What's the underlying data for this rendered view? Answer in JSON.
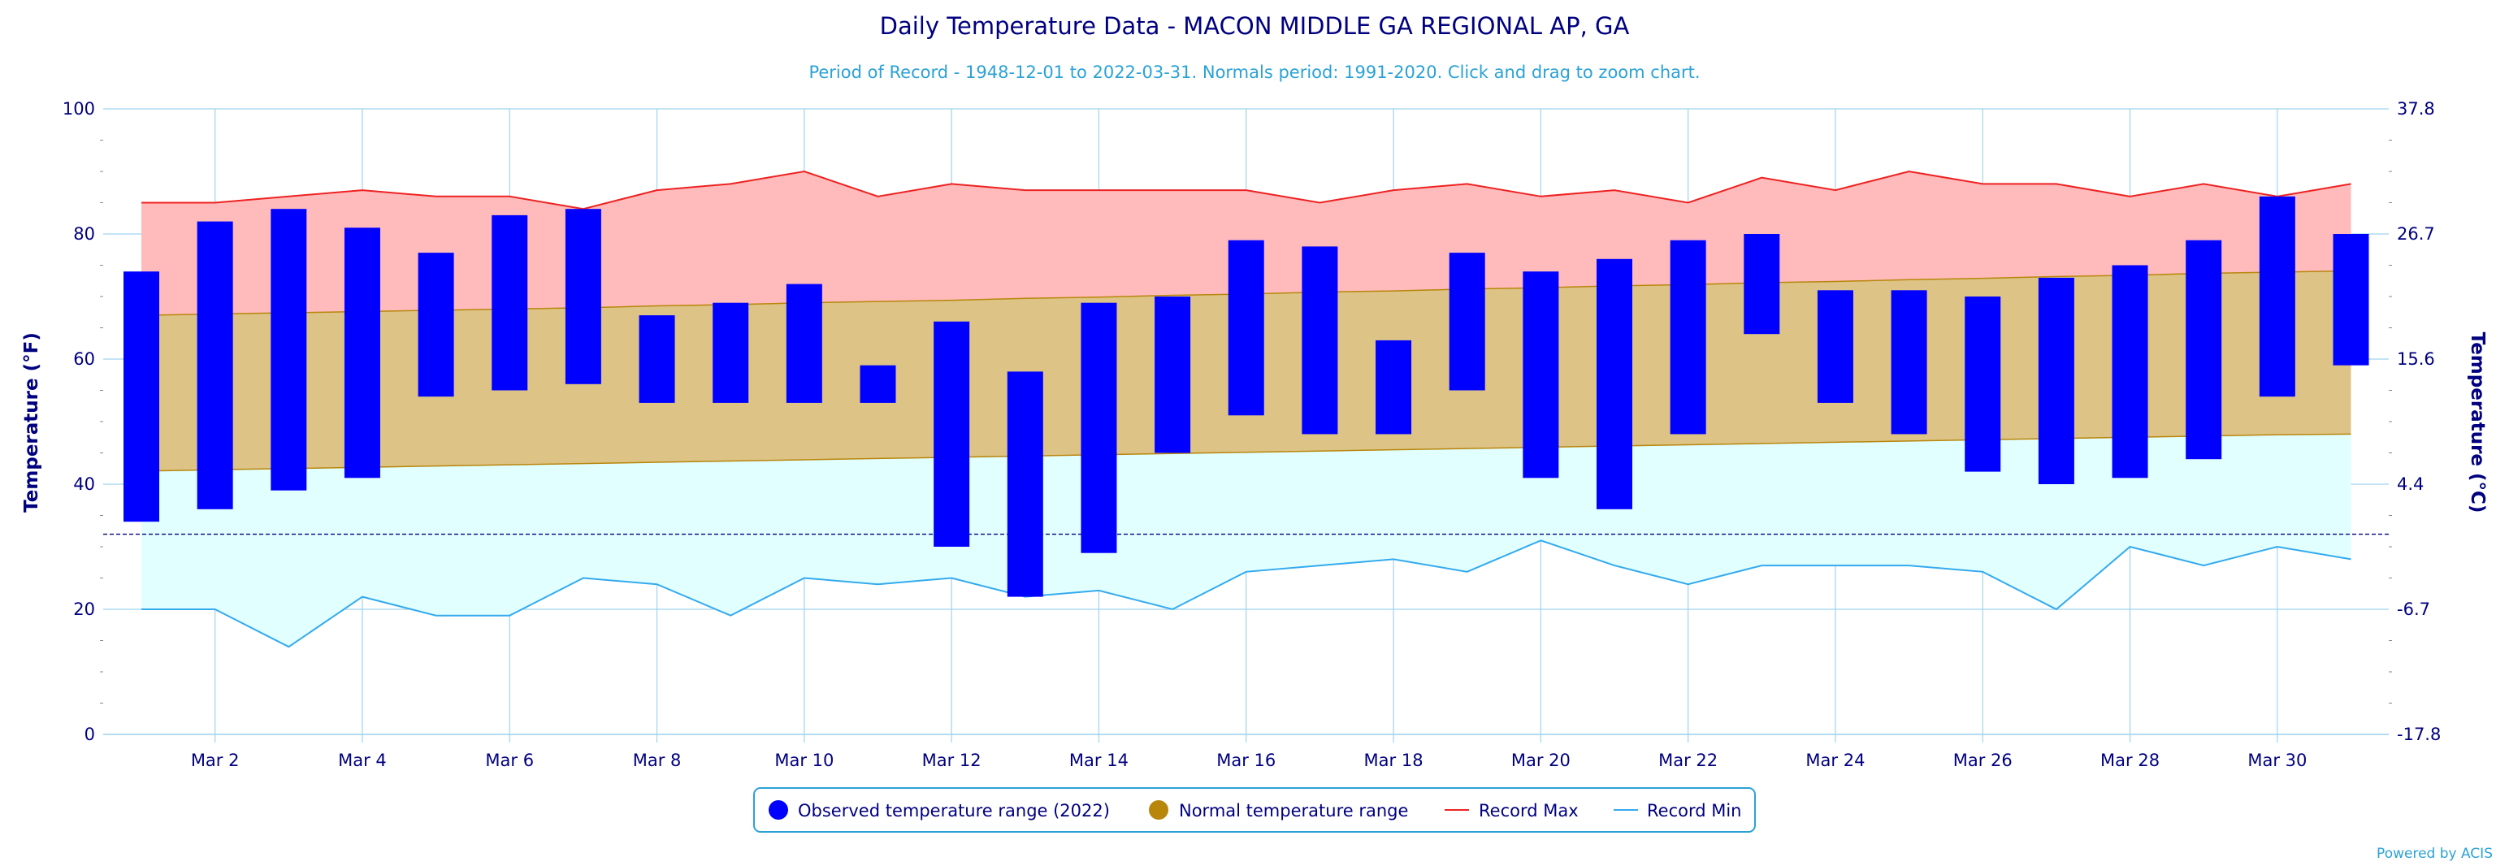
{
  "title": "Daily Temperature Data - MACON MIDDLE GA REGIONAL AP, GA",
  "subtitle": "Period of Record - 1948-12-01 to 2022-03-31. Normals period: 1991-2020. Click and drag to zoom chart.",
  "credits": "Powered by ACIS",
  "colors": {
    "title": "#000080",
    "subtitle": "#2aa2d6",
    "observed": "#0000ff",
    "normal_band": "#ddc386",
    "normal_line": "#b8860b",
    "normal_marker": "#b8860b",
    "record_max_fill": "#ffbbbb",
    "record_max_line": "#ee2222",
    "record_min_fill": "#e2ffff",
    "record_min_line": "#33aaee",
    "grid": "#9fd3ee",
    "freeze_line": "#000080",
    "axis_text": "#000080"
  },
  "chart_data": {
    "type": "floating-bar+area",
    "x": [
      "Mar 1",
      "Mar 2",
      "Mar 3",
      "Mar 4",
      "Mar 5",
      "Mar 6",
      "Mar 7",
      "Mar 8",
      "Mar 9",
      "Mar 10",
      "Mar 11",
      "Mar 12",
      "Mar 13",
      "Mar 14",
      "Mar 15",
      "Mar 16",
      "Mar 17",
      "Mar 18",
      "Mar 19",
      "Mar 20",
      "Mar 21",
      "Mar 22",
      "Mar 23",
      "Mar 24",
      "Mar 25",
      "Mar 26",
      "Mar 27",
      "Mar 28",
      "Mar 29",
      "Mar 30",
      "Mar 31"
    ],
    "x_tick_labels": [
      "Mar 2",
      "Mar 4",
      "Mar 6",
      "Mar 8",
      "Mar 10",
      "Mar 12",
      "Mar 14",
      "Mar 16",
      "Mar 18",
      "Mar 20",
      "Mar 22",
      "Mar 24",
      "Mar 26",
      "Mar 28",
      "Mar 30"
    ],
    "x_tick_days": [
      2,
      4,
      6,
      8,
      10,
      12,
      14,
      16,
      18,
      20,
      22,
      24,
      26,
      28,
      30
    ],
    "y_left_label": "Temperature (°F)",
    "y_right_label": "Temperature (°C)",
    "y_left_ticks": [
      0,
      20,
      40,
      60,
      80,
      100
    ],
    "y_right_ticks": [
      "-17.8",
      "-6.7",
      "4.4",
      "15.6",
      "26.7",
      "37.8"
    ],
    "ylim": [
      0,
      100
    ],
    "freeze_line": 32,
    "grid": true,
    "legend_position": "bottom-center",
    "series": [
      {
        "name": "Observed temperature range (2022)",
        "kind": "floating-bar",
        "low": [
          34,
          36,
          39,
          41,
          54,
          55,
          56,
          53,
          53,
          53,
          53,
          30,
          22,
          29,
          45,
          51,
          48,
          48,
          55,
          41,
          36,
          48,
          64,
          53,
          48,
          42,
          40,
          41,
          44,
          54,
          59
        ],
        "high": [
          74,
          82,
          84,
          81,
          77,
          83,
          84,
          67,
          69,
          72,
          59,
          66,
          58,
          69,
          70,
          79,
          78,
          63,
          77,
          74,
          76,
          79,
          80,
          71,
          71,
          70,
          73,
          75,
          79,
          86,
          80
        ]
      },
      {
        "name": "Normal temperature range",
        "kind": "band",
        "low": [
          42.1,
          42.3,
          42.5,
          42.7,
          42.9,
          43.1,
          43.3,
          43.5,
          43.7,
          43.9,
          44.1,
          44.3,
          44.5,
          44.7,
          44.9,
          45.1,
          45.3,
          45.5,
          45.7,
          45.9,
          46.1,
          46.3,
          46.5,
          46.7,
          46.9,
          47.1,
          47.3,
          47.5,
          47.7,
          47.9,
          48.0
        ],
        "high": [
          67.0,
          67.2,
          67.4,
          67.6,
          67.8,
          68.0,
          68.2,
          68.5,
          68.7,
          69.0,
          69.2,
          69.4,
          69.7,
          69.9,
          70.2,
          70.4,
          70.7,
          70.9,
          71.2,
          71.4,
          71.7,
          71.9,
          72.2,
          72.4,
          72.7,
          72.9,
          73.2,
          73.4,
          73.7,
          73.9,
          74.1
        ]
      },
      {
        "name": "Record Max",
        "kind": "line",
        "values": [
          85,
          85,
          86,
          87,
          86,
          86,
          84,
          87,
          88,
          90,
          86,
          88,
          87,
          87,
          87,
          87,
          85,
          87,
          88,
          86,
          87,
          85,
          89,
          87,
          90,
          88,
          88,
          86,
          88,
          86,
          88
        ]
      },
      {
        "name": "Record Min",
        "kind": "line",
        "values": [
          20,
          20,
          14,
          22,
          19,
          19,
          25,
          24,
          19,
          25,
          24,
          25,
          22,
          23,
          20,
          26,
          27,
          28,
          26,
          31,
          27,
          24,
          27,
          27,
          27,
          26,
          20,
          30,
          27,
          30,
          28
        ]
      }
    ]
  }
}
